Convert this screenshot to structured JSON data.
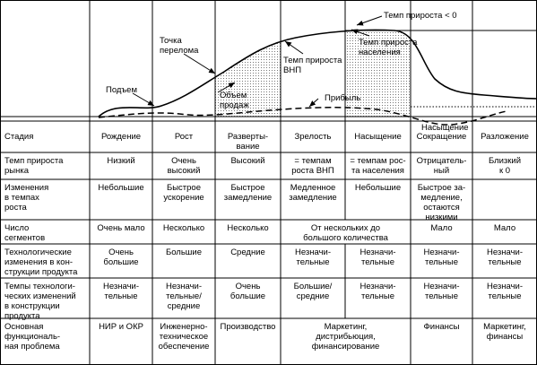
{
  "chart_labels": {
    "turning_point": "Точка\nперелома",
    "rise": "Подъем",
    "sales": "Объем\nпродаж",
    "gnp": "Темп прироста\nВНП",
    "population": "Темп прироста\nнаселения",
    "negative": "Темп прироста < 0",
    "profit": "Прибыль",
    "saturation": "Насыщение"
  },
  "table": {
    "rows": [
      [
        "Стадия",
        "Рождение",
        "Рост",
        "Разверты-\nвание",
        "Зрелость",
        "Насыщение",
        "Сокращение",
        "Разложение"
      ],
      [
        "Темп прироста\nрынка",
        "Низкий",
        "Очень\nвысокий",
        "Высокий",
        "= темпам\nроста ВНП",
        "= темпам рос-\nта населения",
        "Отрицатель-\nный",
        "Близкий\nк 0"
      ],
      [
        "Изменения\nв темпах\nроста",
        "Небольшие",
        "Быстрое\nускорение",
        "Быстрое\nзамедление",
        "Медленное\nзамедление",
        "Небольшие",
        "Быстрое за-\nмедление,\nостаются\nнизкими"
      ],
      [
        "Число\nсегментов",
        "Очень мало",
        "Несколько",
        "Несколько",
        "От нескольких до\nбольшого количества",
        "Мало",
        "Мало"
      ],
      [
        "Технологические\nизменения в кон-\nструкции продукта",
        "Очень\nбольшие",
        "Большие",
        "Средние",
        "Незначи-\nтельные",
        "Незначи-\nтельные",
        "Незначи-\nтельные",
        "Незначи-\nтельные"
      ],
      [
        "Темпы технологи-\nческих изменений\nв конструкции\nпродукта",
        "Незначи-\nтельные",
        "Незначи-\nтельные/\nсредние",
        "Очень\nбольшие",
        "Большие/\nсредние",
        "Незначи-\nтельные",
        "Незначи-\nтельные",
        "Незначи-\nтельные"
      ],
      [
        "Основная\nфункциональ-\nная проблема",
        "НИР и ОКР",
        "Инженерно-\nтехническое\nобеспечение",
        "Производство",
        "Маркетинг,\nдистрибьюция,\nфинансирование",
        "Финансы",
        "Маркетинг,\nфинансы"
      ]
    ]
  }
}
